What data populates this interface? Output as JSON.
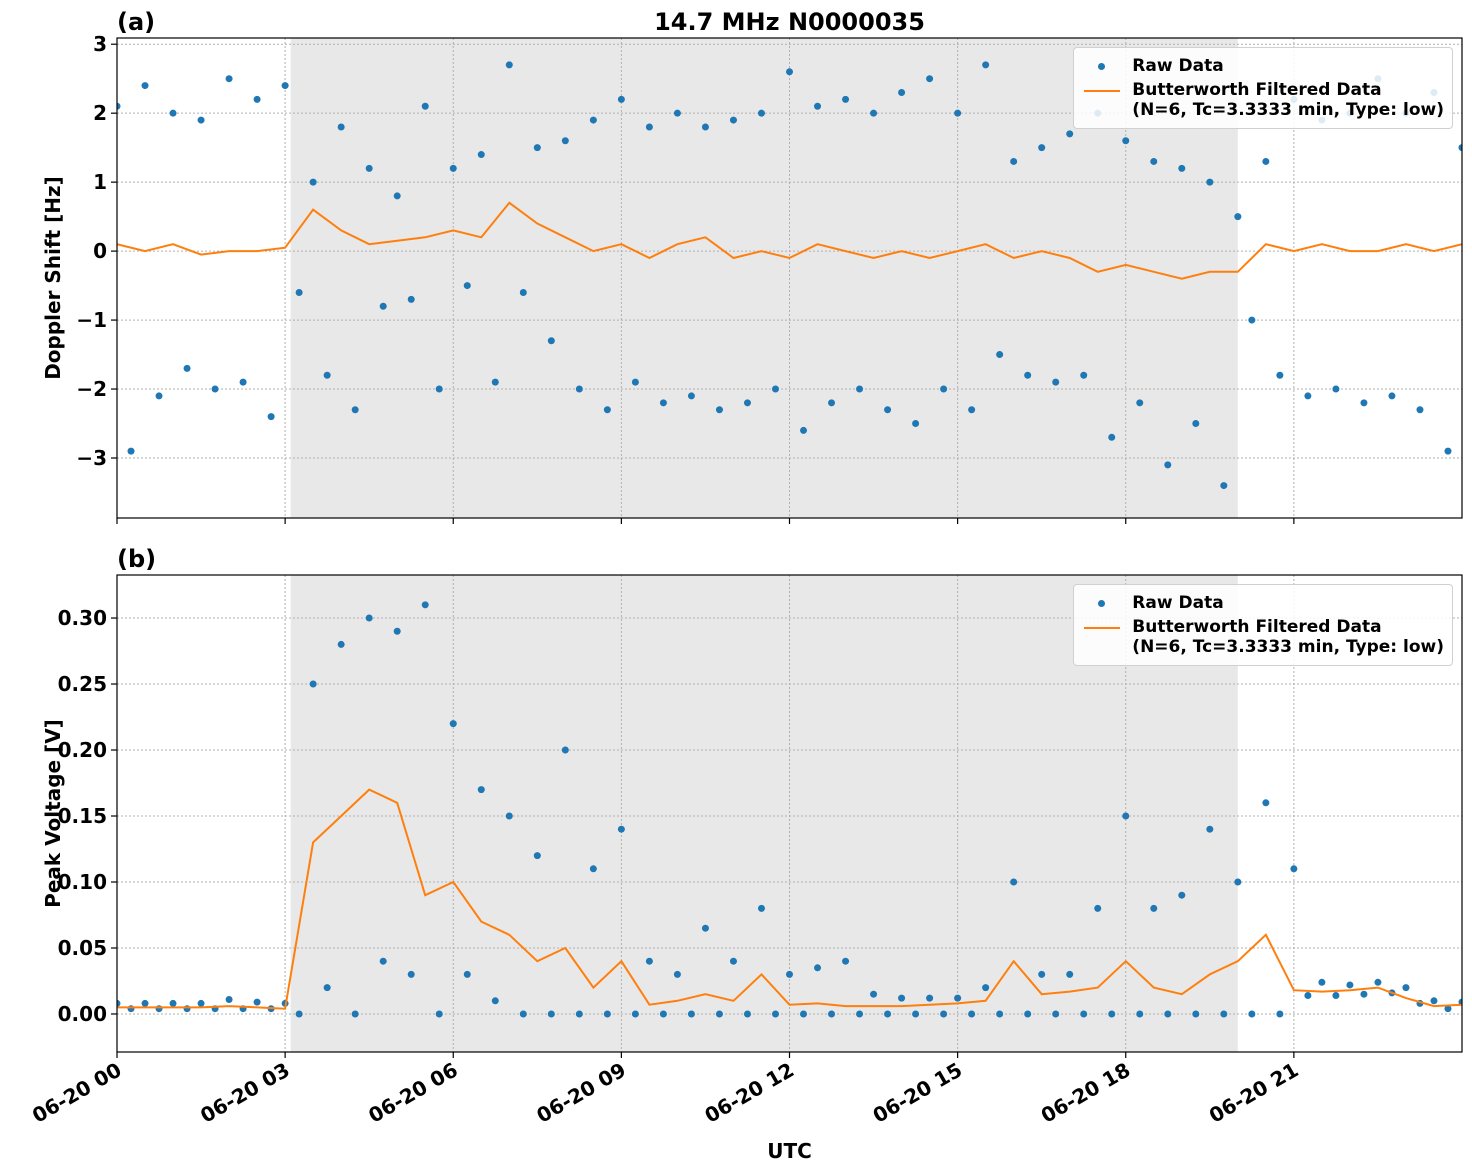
{
  "chart_data": [
    {
      "type": "scatter",
      "panel_label": "(a)",
      "title": "14.7 MHz N0000035",
      "y_label": "Doppler Shift [Hz]",
      "xlim": [
        0,
        24
      ],
      "xticks": [
        0,
        3,
        6,
        9,
        12,
        15,
        18,
        21
      ],
      "ylim": [
        -3.87,
        3.09
      ],
      "yticks": [
        {
          "value": -3,
          "label": "−3"
        },
        {
          "value": -2,
          "label": "−2"
        },
        {
          "value": -1,
          "label": "−1"
        },
        0,
        1,
        2,
        3
      ],
      "grid": true,
      "legend": "upper right",
      "shaded_span": [
        3.1,
        20.0
      ],
      "series": [
        {
          "name": "Raw Data",
          "color": "#1f77b4",
          "type": "scatter",
          "x": [
            0,
            0.25,
            0.5,
            0.75,
            1,
            1.25,
            1.5,
            1.75,
            2,
            2.25,
            2.5,
            2.75,
            3,
            3.25,
            3.5,
            3.75,
            4,
            4.25,
            4.5,
            4.75,
            5,
            5.25,
            5.5,
            5.75,
            6,
            6.25,
            6.5,
            6.75,
            7,
            7.25,
            7.5,
            7.75,
            8,
            8.25,
            8.5,
            8.75,
            9,
            9.25,
            9.5,
            9.75,
            10,
            10.25,
            10.5,
            10.75,
            11,
            11.25,
            11.5,
            11.75,
            12,
            12.25,
            12.5,
            12.75,
            13,
            13.25,
            13.5,
            13.75,
            14,
            14.25,
            14.5,
            14.75,
            15,
            15.25,
            15.5,
            15.75,
            16,
            16.25,
            16.5,
            16.75,
            17,
            17.25,
            17.5,
            17.75,
            18,
            18.25,
            18.5,
            18.75,
            19,
            19.25,
            19.5,
            19.75,
            20,
            20.25,
            20.5,
            20.75,
            21,
            21.25,
            21.5,
            21.75,
            22,
            22.25,
            22.5,
            22.75,
            23,
            23.25,
            23.5,
            23.75,
            24
          ],
          "values": [
            2.1,
            -2.9,
            2.4,
            -2.1,
            2.0,
            -1.7,
            1.9,
            -2.0,
            2.5,
            -1.9,
            2.2,
            -2.4,
            2.4,
            -0.6,
            1.0,
            -1.8,
            1.8,
            -2.3,
            1.2,
            -0.8,
            0.8,
            -0.7,
            2.1,
            -2.0,
            1.2,
            -0.5,
            1.4,
            -1.9,
            2.7,
            -0.6,
            1.5,
            -1.3,
            1.6,
            -2.0,
            1.9,
            -2.3,
            2.2,
            -1.9,
            1.8,
            -2.2,
            2.0,
            -2.1,
            1.8,
            -2.3,
            1.9,
            -2.2,
            2.0,
            -2.0,
            2.6,
            -2.6,
            2.1,
            -2.2,
            2.2,
            -2.0,
            2.0,
            -2.3,
            2.3,
            -2.5,
            2.5,
            -2.0,
            2.0,
            -2.3,
            2.7,
            -1.5,
            1.3,
            -1.8,
            1.5,
            -1.9,
            1.7,
            -1.8,
            2.0,
            -2.7,
            1.6,
            -2.2,
            1.3,
            -3.1,
            1.2,
            -2.5,
            1.0,
            -3.4,
            0.5,
            -1.0,
            1.3,
            -1.8,
            2.2,
            -2.1,
            1.9,
            -2.0,
            2.0,
            -2.2,
            2.5,
            -2.1,
            2.0,
            -2.3,
            2.3,
            -2.9,
            1.5
          ]
        },
        {
          "name": "Butterworth Filtered Data\n(N=6, Tc=3.3333 min, Type: low)",
          "color": "#ff7f0e",
          "type": "line",
          "x": [
            0,
            0.5,
            1,
            1.5,
            2,
            2.5,
            3,
            3.5,
            4,
            4.5,
            5,
            5.5,
            6,
            6.5,
            7,
            7.5,
            8,
            8.5,
            9,
            9.5,
            10,
            10.5,
            11,
            11.5,
            12,
            12.5,
            13,
            13.5,
            14,
            14.5,
            15,
            15.5,
            16,
            16.5,
            17,
            17.5,
            18,
            18.5,
            19,
            19.5,
            20,
            20.5,
            21,
            21.5,
            22,
            22.5,
            23,
            23.5,
            24
          ],
          "values": [
            0.1,
            0.0,
            0.1,
            -0.05,
            0.0,
            0.0,
            0.05,
            0.6,
            0.3,
            0.1,
            0.15,
            0.2,
            0.3,
            0.2,
            0.7,
            0.4,
            0.2,
            0.0,
            0.1,
            -0.1,
            0.1,
            0.2,
            -0.1,
            0.0,
            -0.1,
            0.1,
            0.0,
            -0.1,
            0.0,
            -0.1,
            0.0,
            0.1,
            -0.1,
            0.0,
            -0.1,
            -0.3,
            -0.2,
            -0.3,
            -0.4,
            -0.3,
            -0.3,
            0.1,
            0.0,
            0.1,
            0.0,
            0.0,
            0.1,
            0.0,
            0.1
          ]
        }
      ]
    },
    {
      "type": "scatter",
      "panel_label": "(b)",
      "y_label": "Peak Voltage [V]",
      "x_label": "UTC",
      "xlim": [
        0,
        24
      ],
      "xticks": [
        {
          "value": 0,
          "label": "06-20 00"
        },
        {
          "value": 3,
          "label": "06-20 03"
        },
        {
          "value": 6,
          "label": "06-20 06"
        },
        {
          "value": 9,
          "label": "06-20 09"
        },
        {
          "value": 12,
          "label": "06-20 12"
        },
        {
          "value": 15,
          "label": "06-20 15"
        },
        {
          "value": 18,
          "label": "06-20 18"
        },
        {
          "value": 21,
          "label": "06-20 21"
        }
      ],
      "ylim": [
        -0.0288,
        0.3326
      ],
      "yticks": [
        {
          "value": 0,
          "label": "0.00"
        },
        {
          "value": 0.05,
          "label": "0.05"
        },
        {
          "value": 0.1,
          "label": "0.10"
        },
        {
          "value": 0.15,
          "label": "0.15"
        },
        {
          "value": 0.2,
          "label": "0.20"
        },
        {
          "value": 0.25,
          "label": "0.25"
        },
        {
          "value": 0.3,
          "label": "0.30"
        }
      ],
      "grid": true,
      "legend": "upper right",
      "shaded_span": [
        3.1,
        20.0
      ],
      "series": [
        {
          "name": "Raw Data",
          "color": "#1f77b4",
          "type": "scatter",
          "x": [
            0,
            0.25,
            0.5,
            0.75,
            1,
            1.25,
            1.5,
            1.75,
            2,
            2.25,
            2.5,
            2.75,
            3,
            3.25,
            3.5,
            3.75,
            4,
            4.25,
            4.5,
            4.75,
            5,
            5.25,
            5.5,
            5.75,
            6,
            6.25,
            6.5,
            6.75,
            7,
            7.25,
            7.5,
            7.75,
            8,
            8.25,
            8.5,
            8.75,
            9,
            9.25,
            9.5,
            9.75,
            10,
            10.25,
            10.5,
            10.75,
            11,
            11.25,
            11.5,
            11.75,
            12,
            12.25,
            12.5,
            12.75,
            13,
            13.25,
            13.5,
            13.75,
            14,
            14.25,
            14.5,
            14.75,
            15,
            15.25,
            15.5,
            15.75,
            16,
            16.25,
            16.5,
            16.75,
            17,
            17.25,
            17.5,
            17.75,
            18,
            18.25,
            18.5,
            18.75,
            19,
            19.25,
            19.5,
            19.75,
            20,
            20.25,
            20.5,
            20.75,
            21,
            21.25,
            21.5,
            21.75,
            22,
            22.25,
            22.5,
            22.75,
            23,
            23.25,
            23.5,
            23.75,
            24
          ],
          "values": [
            0.008,
            0.004,
            0.008,
            0.004,
            0.008,
            0.004,
            0.008,
            0.004,
            0.011,
            0.004,
            0.009,
            0.004,
            0.008,
            0.0,
            0.25,
            0.02,
            0.28,
            0.0,
            0.3,
            0.04,
            0.29,
            0.03,
            0.31,
            0.0,
            0.22,
            0.03,
            0.17,
            0.01,
            0.15,
            0.0,
            0.12,
            0.0,
            0.2,
            0.0,
            0.11,
            0.0,
            0.14,
            0.0,
            0.04,
            0.0,
            0.03,
            0.0,
            0.065,
            0.0,
            0.04,
            0.0,
            0.08,
            0.0,
            0.03,
            0.0,
            0.035,
            0.0,
            0.04,
            0.0,
            0.015,
            0.0,
            0.012,
            0.0,
            0.012,
            0.0,
            0.012,
            0.0,
            0.02,
            0.0,
            0.1,
            0.0,
            0.03,
            0.0,
            0.03,
            0.0,
            0.08,
            0.0,
            0.15,
            0.0,
            0.08,
            0.0,
            0.09,
            0.0,
            0.14,
            0.0,
            0.1,
            0.0,
            0.16,
            0.0,
            0.11,
            0.014,
            0.024,
            0.014,
            0.022,
            0.015,
            0.024,
            0.016,
            0.02,
            0.008,
            0.01,
            0.004,
            0.009
          ]
        },
        {
          "name": "Butterworth Filtered Data\n(N=6, Tc=3.3333 min, Type: low)",
          "color": "#ff7f0e",
          "type": "line",
          "x": [
            0,
            0.5,
            1,
            1.5,
            2,
            2.5,
            3,
            3.5,
            4,
            4.5,
            5,
            5.5,
            6,
            6.5,
            7,
            7.5,
            8,
            8.5,
            9,
            9.5,
            10,
            10.5,
            11,
            11.5,
            12,
            12.5,
            13,
            13.5,
            14,
            14.5,
            15,
            15.5,
            16,
            16.5,
            17,
            17.5,
            18,
            18.5,
            19,
            19.5,
            20,
            20.5,
            21,
            21.5,
            22,
            22.5,
            23,
            23.5,
            24
          ],
          "values": [
            0.005,
            0.005,
            0.005,
            0.005,
            0.006,
            0.005,
            0.004,
            0.13,
            0.15,
            0.17,
            0.16,
            0.09,
            0.1,
            0.07,
            0.06,
            0.04,
            0.05,
            0.02,
            0.04,
            0.007,
            0.01,
            0.015,
            0.01,
            0.03,
            0.007,
            0.008,
            0.006,
            0.006,
            0.006,
            0.007,
            0.008,
            0.01,
            0.04,
            0.015,
            0.017,
            0.02,
            0.04,
            0.02,
            0.015,
            0.03,
            0.04,
            0.06,
            0.018,
            0.017,
            0.018,
            0.02,
            0.012,
            0.006,
            0.007
          ]
        }
      ]
    }
  ]
}
